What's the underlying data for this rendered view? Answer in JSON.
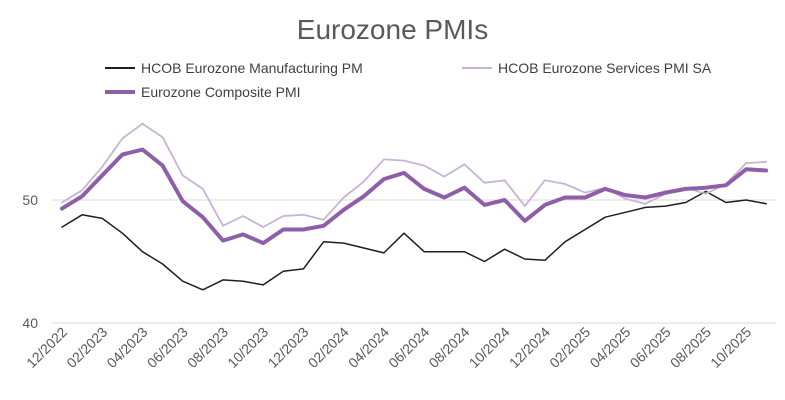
{
  "chart_data": {
    "type": "line",
    "title": "Eurozone PMIs",
    "xlabel": "",
    "ylabel": "",
    "ylim": [
      40,
      57.5
    ],
    "yticks": [
      40,
      50
    ],
    "grid": true,
    "legend_position": "top",
    "x": [
      "12/2022",
      "01/2023",
      "02/2023",
      "03/2023",
      "04/2023",
      "05/2023",
      "06/2023",
      "07/2023",
      "08/2023",
      "09/2023",
      "10/2023",
      "11/2023",
      "12/2023",
      "01/2024",
      "02/2024",
      "03/2024",
      "04/2024",
      "05/2024",
      "06/2024",
      "07/2024",
      "08/2024",
      "09/2024",
      "10/2024",
      "11/2024",
      "12/2024",
      "01/2025",
      "02/2025",
      "03/2025",
      "04/2025",
      "05/2025",
      "06/2025",
      "07/2025",
      "08/2025",
      "09/2025",
      "10/2025",
      "11/2025"
    ],
    "xtick_labels": [
      "12/2022",
      "02/2023",
      "04/2023",
      "06/2023",
      "08/2023",
      "10/2023",
      "12/2023",
      "02/2024",
      "04/2024",
      "06/2024",
      "08/2024",
      "10/2024",
      "12/2024",
      "02/2025",
      "04/2025",
      "06/2025",
      "08/2025",
      "10/2025"
    ],
    "series": [
      {
        "name": "HCOB Eurozone Manufacturing PM",
        "color": "#1f1f1f",
        "width": 1.5,
        "values": [
          47.8,
          48.8,
          48.5,
          47.3,
          45.8,
          44.8,
          43.4,
          42.7,
          43.5,
          43.4,
          43.1,
          44.2,
          44.4,
          46.6,
          46.5,
          46.1,
          45.7,
          47.3,
          45.8,
          45.8,
          45.8,
          45.0,
          46.0,
          45.2,
          45.1,
          46.6,
          47.6,
          48.6,
          49.0,
          49.4,
          49.5,
          49.8,
          50.7,
          49.8,
          50.0,
          49.7
        ]
      },
      {
        "name": "HCOB Eurozone Services PMI SA",
        "color": "#c9b3d6",
        "width": 1.8,
        "values": [
          49.8,
          50.8,
          52.7,
          55.0,
          56.2,
          55.1,
          52.0,
          50.9,
          47.9,
          48.7,
          47.8,
          48.7,
          48.8,
          48.4,
          50.2,
          51.5,
          53.3,
          53.2,
          52.8,
          51.9,
          52.9,
          51.4,
          51.6,
          49.5,
          51.6,
          51.3,
          50.6,
          51.0,
          50.1,
          49.7,
          50.5,
          51.0,
          50.5,
          51.3,
          53.0,
          53.1
        ]
      },
      {
        "name": "Eurozone Composite PMI",
        "color": "#8e5fa8",
        "width": 4,
        "values": [
          49.3,
          50.3,
          52.0,
          53.7,
          54.1,
          52.8,
          49.9,
          48.6,
          46.7,
          47.2,
          46.5,
          47.6,
          47.6,
          47.9,
          49.2,
          50.3,
          51.7,
          52.2,
          50.9,
          50.2,
          51.0,
          49.6,
          50.0,
          48.3,
          49.6,
          50.2,
          50.2,
          50.9,
          50.4,
          50.2,
          50.6,
          50.9,
          51.0,
          51.2,
          52.5,
          52.4
        ]
      }
    ]
  }
}
